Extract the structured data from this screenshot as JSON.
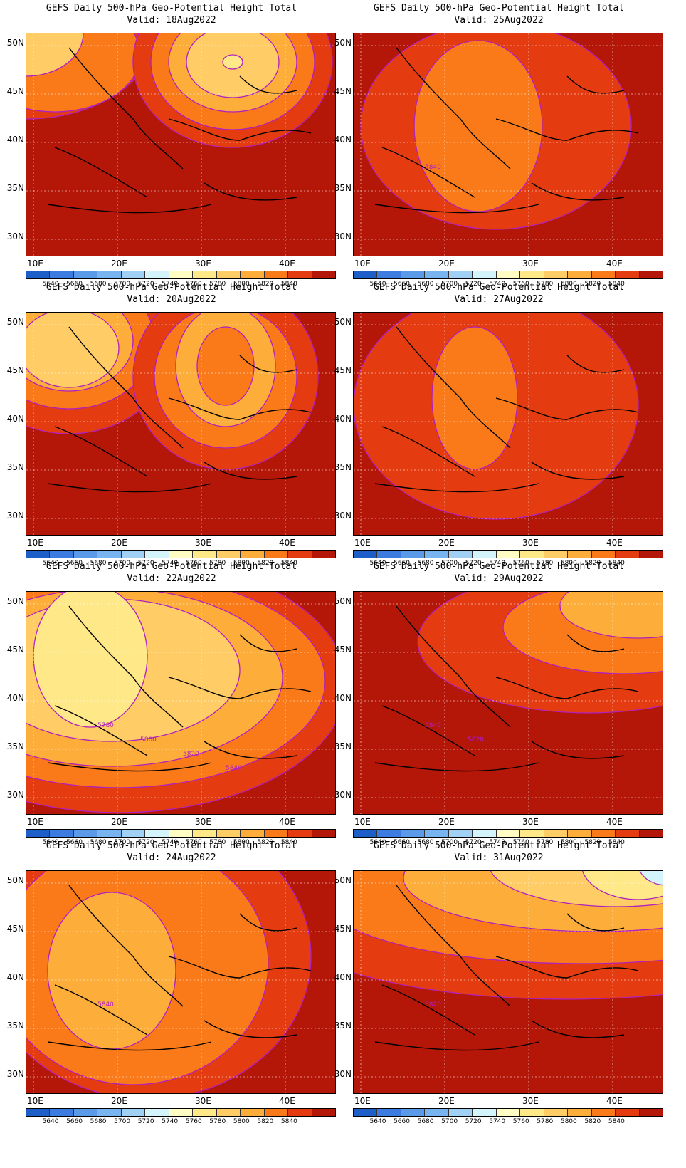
{
  "colorbar": {
    "colors": [
      "#1e5ec8",
      "#3c7ce0",
      "#5a9ae8",
      "#78b4f0",
      "#a0d0f4",
      "#d4f4fc",
      "#fffcc4",
      "#ffe888",
      "#ffcc66",
      "#fdad3a",
      "#fa7a1a",
      "#e43c10",
      "#b41608"
    ],
    "labels": [
      "5640",
      "5660",
      "5680",
      "5700",
      "5720",
      "5740",
      "5760",
      "5780",
      "5800",
      "5820",
      "5840"
    ]
  },
  "axes": {
    "lat_labels": [
      "50N",
      "45N",
      "40N",
      "35N",
      "30N"
    ],
    "lon_labels": [
      "10E",
      "20E",
      "30E",
      "40E"
    ]
  },
  "panels": [
    {
      "title": "GEFS Daily 500-hPa Geo-Potential Height Total",
      "subtitle": "Valid: 18Aug2022",
      "contour_labels": []
    },
    {
      "title": "GEFS Daily 500-hPa Geo-Potential Height Total",
      "subtitle": "Valid: 25Aug2022",
      "contour_labels": [
        "5840"
      ]
    },
    {
      "title": "GEFS Daily 500-hPa Geo-Potential Height Total",
      "subtitle": "Valid: 20Aug2022",
      "contour_labels": []
    },
    {
      "title": "GEFS Daily 500-hPa Geo-Potential Height Total",
      "subtitle": "Valid: 27Aug2022",
      "contour_labels": []
    },
    {
      "title": "GEFS Daily 500-hPa Geo-Potential Height Total",
      "subtitle": "Valid: 22Aug2022",
      "contour_labels": [
        "5780",
        "5800",
        "5820",
        "5840"
      ]
    },
    {
      "title": "GEFS Daily 500-hPa Geo-Potential Height Total",
      "subtitle": "Valid: 29Aug2022",
      "contour_labels": [
        "5840",
        "5820"
      ]
    },
    {
      "title": "GEFS Daily 500-hPa Geo-Potential Height Total",
      "subtitle": "Valid: 24Aug2022",
      "contour_labels": [
        "5840"
      ]
    },
    {
      "title": "GEFS Daily 500-hPa Geo-Potential Height Total",
      "subtitle": "Valid: 31Aug2022",
      "contour_labels": [
        "5820"
      ]
    }
  ]
}
